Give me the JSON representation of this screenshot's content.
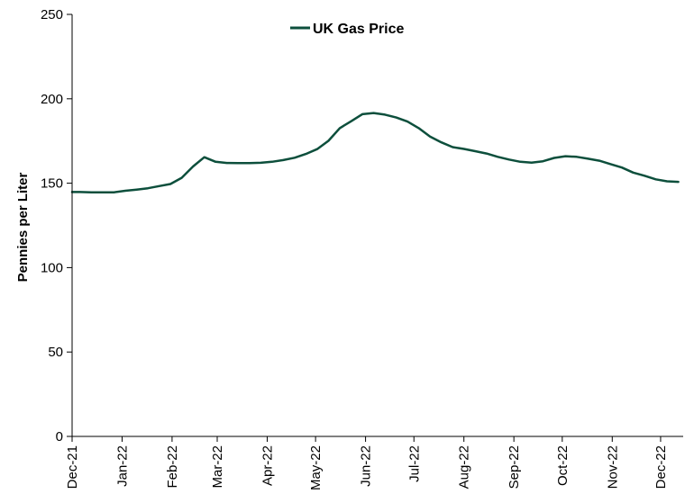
{
  "chart_data": {
    "type": "line",
    "title": "",
    "xlabel": "",
    "ylabel": "Pennies per Liter",
    "ylim": [
      0,
      250
    ],
    "yticks": [
      0,
      50,
      100,
      150,
      200,
      250
    ],
    "xticks": [
      "Dec-21",
      "Jan-22",
      "Feb-22",
      "Mar-22",
      "Apr-22",
      "May-22",
      "Jun-22",
      "Jul-22",
      "Aug-22",
      "Sep-22",
      "Oct-22",
      "Nov-22",
      "Dec-22"
    ],
    "grid": false,
    "legend": "top-center",
    "series": [
      {
        "name": "UK Gas Price",
        "color": "#0d4f3c",
        "x": [
          "2021-12-01",
          "2021-12-06",
          "2021-12-13",
          "2021-12-20",
          "2021-12-27",
          "2022-01-03",
          "2022-01-10",
          "2022-01-17",
          "2022-01-24",
          "2022-01-31",
          "2022-02-07",
          "2022-02-14",
          "2022-02-21",
          "2022-02-28",
          "2022-03-07",
          "2022-03-14",
          "2022-03-21",
          "2022-03-28",
          "2022-04-04",
          "2022-04-11",
          "2022-04-18",
          "2022-04-25",
          "2022-05-02",
          "2022-05-09",
          "2022-05-16",
          "2022-05-23",
          "2022-05-30",
          "2022-06-06",
          "2022-06-13",
          "2022-06-20",
          "2022-06-27",
          "2022-07-04",
          "2022-07-11",
          "2022-07-18",
          "2022-07-25",
          "2022-08-01",
          "2022-08-08",
          "2022-08-15",
          "2022-08-22",
          "2022-08-29",
          "2022-09-05",
          "2022-09-12",
          "2022-09-19",
          "2022-09-26",
          "2022-10-03",
          "2022-10-10",
          "2022-10-17",
          "2022-10-24",
          "2022-10-31",
          "2022-11-07",
          "2022-11-14",
          "2022-11-21",
          "2022-11-28",
          "2022-12-05",
          "2022-12-12"
        ],
        "values": [
          144.8,
          144.8,
          144.6,
          144.6,
          144.6,
          145.5,
          146.2,
          147.0,
          148.3,
          149.5,
          153.2,
          159.9,
          165.4,
          162.7,
          162.0,
          161.9,
          161.9,
          162.1,
          162.7,
          163.7,
          165.1,
          167.3,
          170.2,
          175.1,
          182.6,
          186.7,
          190.9,
          191.6,
          190.6,
          188.9,
          186.5,
          182.6,
          177.6,
          174.2,
          171.4,
          170.3,
          169.0,
          167.6,
          165.6,
          164.0,
          162.7,
          162.2,
          163.0,
          165.0,
          166.0,
          165.6,
          164.5,
          163.3,
          161.3,
          159.3,
          156.3,
          154.4,
          152.3,
          151.1,
          150.8
        ]
      }
    ]
  }
}
